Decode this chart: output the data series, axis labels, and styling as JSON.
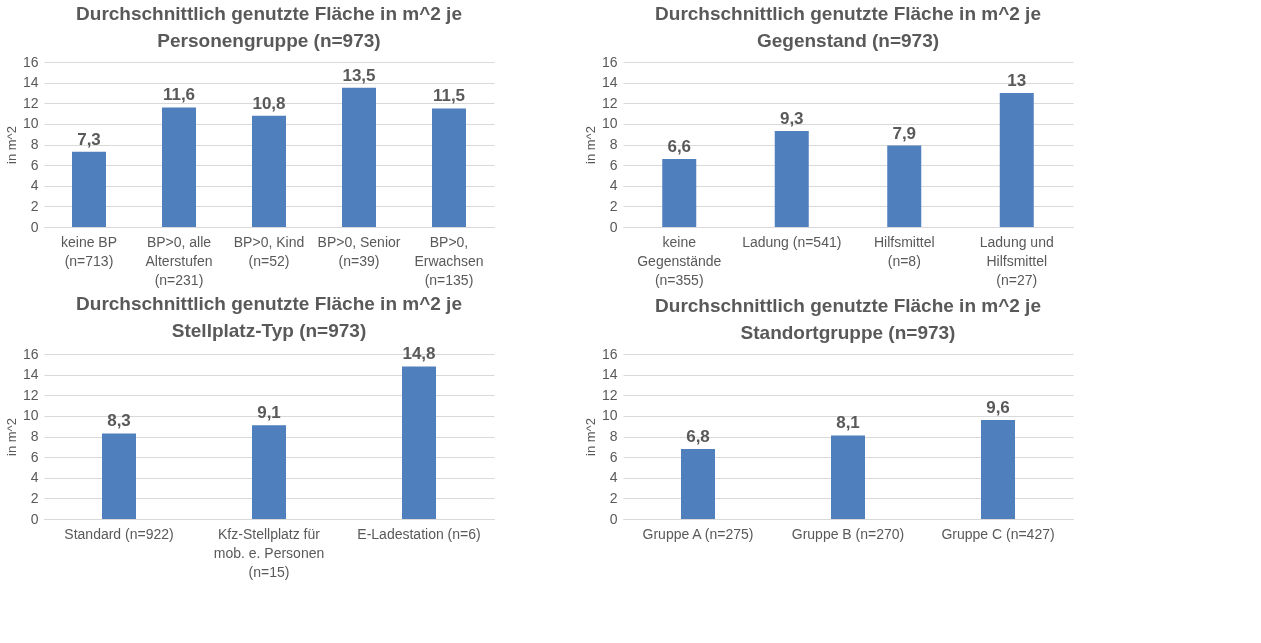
{
  "chart_data": [
    {
      "type": "bar",
      "title": "Durchschnittlich genutzte Fläche in m^2 je Personengruppe (n=973)",
      "ylabel": "in m^2",
      "categories": [
        "keine BP (n=713)",
        "BP>0, alle Alterstufen (n=231)",
        "BP>0, Kind (n=52)",
        "BP>0, Senior (n=39)",
        "BP>0, Erwachsen (n=135)"
      ],
      "values": [
        7.3,
        11.6,
        10.8,
        13.5,
        11.5
      ],
      "value_labels": [
        "7,3",
        "11,6",
        "10,8",
        "13,5",
        "11,5"
      ],
      "color": "#4f7fbc",
      "ylim": [
        0,
        16
      ],
      "yticks": [
        0,
        2,
        4,
        6,
        8,
        10,
        12,
        14,
        16
      ],
      "grid": "y"
    },
    {
      "type": "bar",
      "title": "Durchschnittlich genutzte Fläche in m^2 je Gegenstand (n=973)",
      "ylabel": "in m^2",
      "categories": [
        "keine Gegenstände (n=355)",
        "Ladung (n=541)",
        "Hilfsmittel (n=8)",
        "Ladung und Hilfsmittel (n=27)"
      ],
      "values": [
        6.6,
        9.3,
        7.9,
        13
      ],
      "value_labels": [
        "6,6",
        "9,3",
        "7,9",
        "13"
      ],
      "color": "#4f7fbc",
      "ylim": [
        0,
        16
      ],
      "yticks": [
        0,
        2,
        4,
        6,
        8,
        10,
        12,
        14,
        16
      ],
      "grid": "y"
    },
    {
      "type": "bar",
      "title": "Durchschnittlich genutzte Fläche in m^2 je Stellplatz-Typ (n=973)",
      "ylabel": "in m^2",
      "categories": [
        "Standard (n=922)",
        "Kfz-Stellplatz für mob. e. Personen (n=15)",
        "E-Ladestation (n=6)"
      ],
      "values": [
        8.3,
        9.1,
        14.8
      ],
      "value_labels": [
        "8,3",
        "9,1",
        "14,8"
      ],
      "color": "#4f7fbc",
      "ylim": [
        0,
        16
      ],
      "yticks": [
        0,
        2,
        4,
        6,
        8,
        10,
        12,
        14,
        16
      ],
      "grid": "y"
    },
    {
      "type": "bar",
      "title": "Durchschnittlich genutzte Fläche in m^2 je Standortgruppe (n=973)",
      "ylabel": "in m^2",
      "categories": [
        "Gruppe A (n=275)",
        "Gruppe B (n=270)",
        "Gruppe C (n=427)"
      ],
      "values": [
        6.8,
        8.1,
        9.6
      ],
      "value_labels": [
        "6,8",
        "8,1",
        "9,6"
      ],
      "color": "#4f7fbc",
      "ylim": [
        0,
        16
      ],
      "yticks": [
        0,
        2,
        4,
        6,
        8,
        10,
        12,
        14,
        16
      ],
      "grid": "y"
    }
  ]
}
